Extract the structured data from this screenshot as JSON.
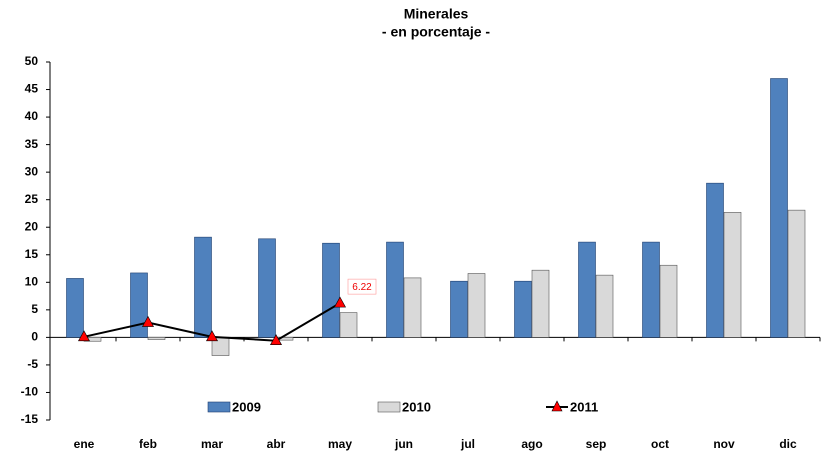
{
  "chart_data": {
    "type": "bar",
    "title": "Minerales",
    "subtitle": "- en porcentaje -",
    "categories": [
      "ene",
      "feb",
      "mar",
      "abr",
      "may",
      "jun",
      "jul",
      "ago",
      "sep",
      "oct",
      "nov",
      "dic"
    ],
    "series": [
      {
        "name": "2009",
        "type": "bar",
        "color": "#4f81bd",
        "values": [
          10.7,
          11.7,
          18.2,
          17.9,
          17.1,
          17.3,
          10.2,
          10.2,
          17.3,
          17.3,
          28,
          47
        ]
      },
      {
        "name": "2010",
        "type": "bar",
        "color": "#d9d9d9",
        "values": [
          -0.7,
          -0.4,
          -3.3,
          -0.5,
          4.5,
          10.8,
          11.6,
          12.2,
          11.3,
          13.1,
          22.7,
          23.1
        ]
      },
      {
        "name": "2011",
        "type": "line",
        "color": "#000000",
        "marker_color": "#ff0000",
        "values": [
          0.1,
          2.7,
          0.1,
          -0.6,
          6.22,
          null,
          null,
          null,
          null,
          null,
          null,
          null
        ],
        "value_labels": [
          null,
          null,
          null,
          null,
          "6.22",
          null,
          null,
          null,
          null,
          null,
          null,
          null
        ]
      }
    ],
    "ylim": [
      -15,
      50
    ],
    "yticks": [
      -15,
      -10,
      -5,
      0,
      5,
      10,
      15,
      20,
      25,
      30,
      35,
      40,
      45,
      50
    ],
    "grid": false,
    "legend": "bottom"
  }
}
